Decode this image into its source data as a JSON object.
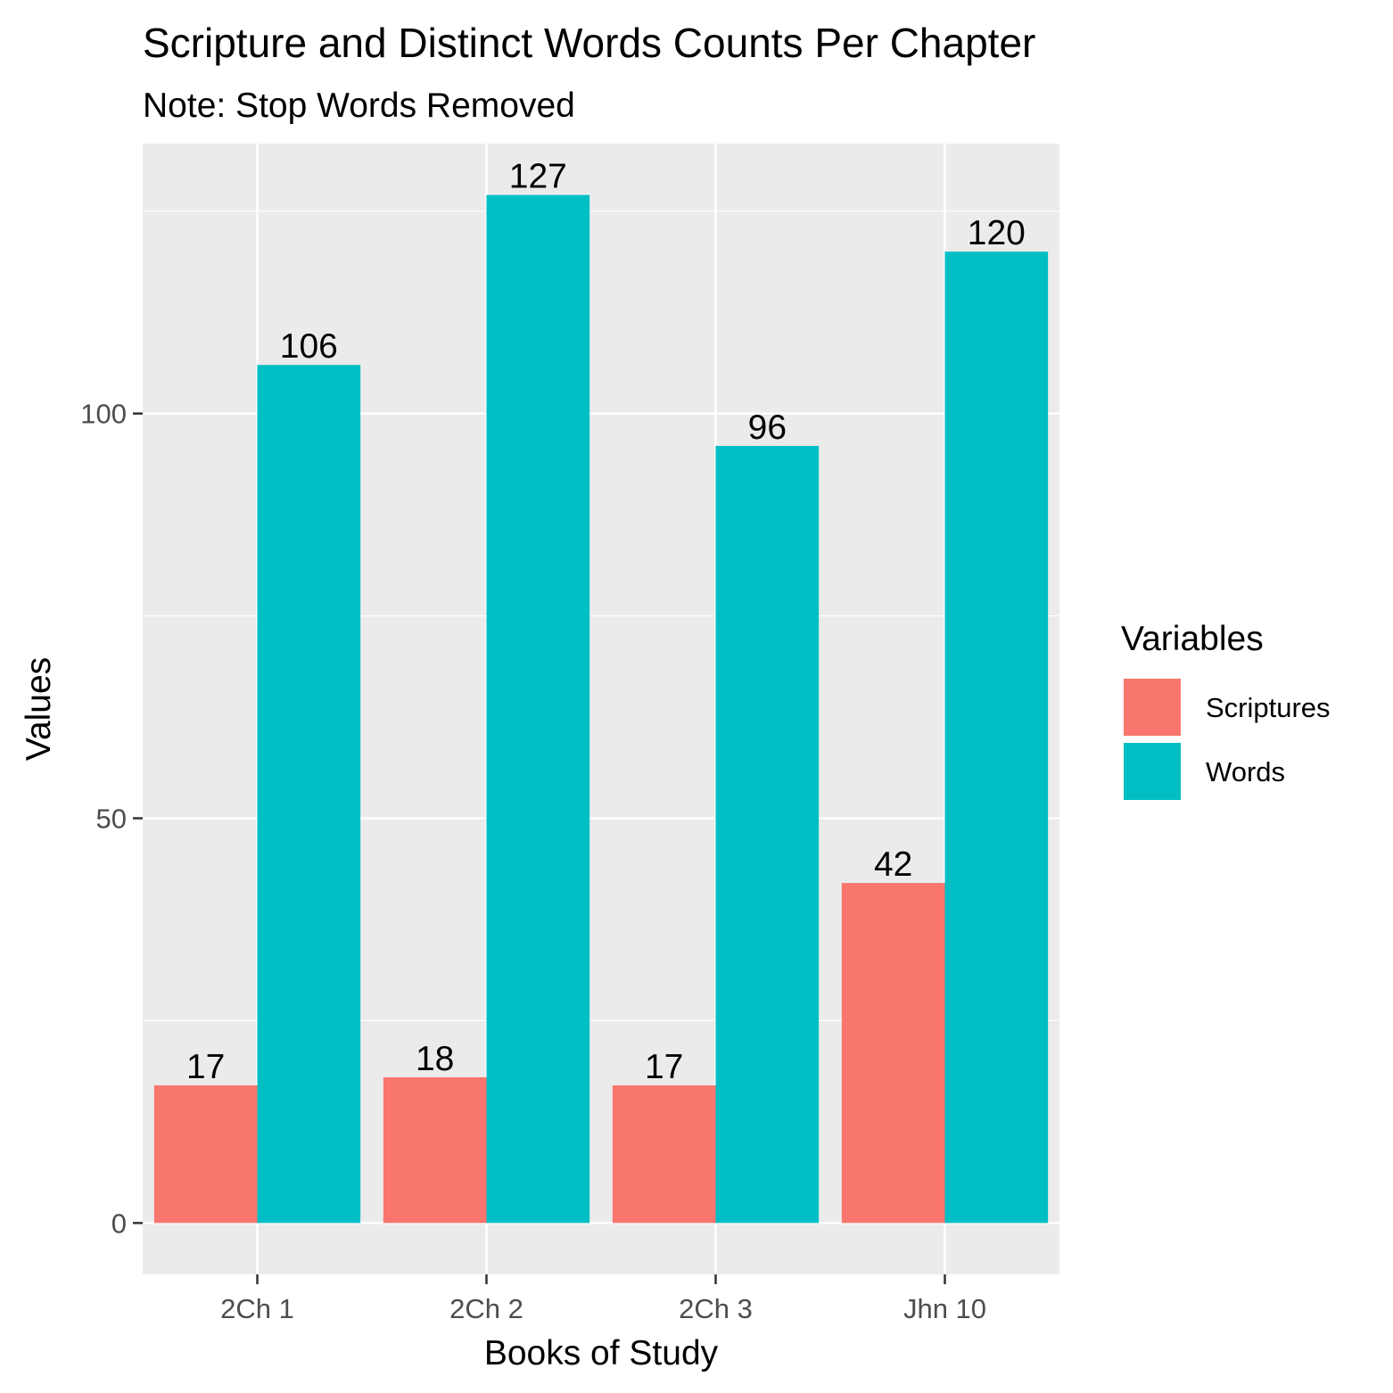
{
  "chart_data": {
    "type": "bar",
    "title": "Scripture and Distinct Words Counts Per Chapter",
    "subtitle": "Note: Stop Words Removed",
    "xlabel": "Books of Study",
    "ylabel": "Values",
    "categories": [
      "2Ch 1",
      "2Ch 2",
      "2Ch 3",
      "Jhn 10"
    ],
    "series": [
      {
        "name": "Scriptures",
        "color": "#F8766D",
        "values": [
          17,
          18,
          17,
          42
        ]
      },
      {
        "name": "Words",
        "color": "#00BFC4",
        "values": [
          106,
          127,
          96,
          120
        ]
      }
    ],
    "yticks": [
      0,
      50,
      100
    ],
    "ylim": [
      -6.35,
      133.35
    ],
    "grid": true,
    "legend": {
      "title": "Variables",
      "position": "right"
    },
    "panel_color": "#EBEBEB"
  }
}
